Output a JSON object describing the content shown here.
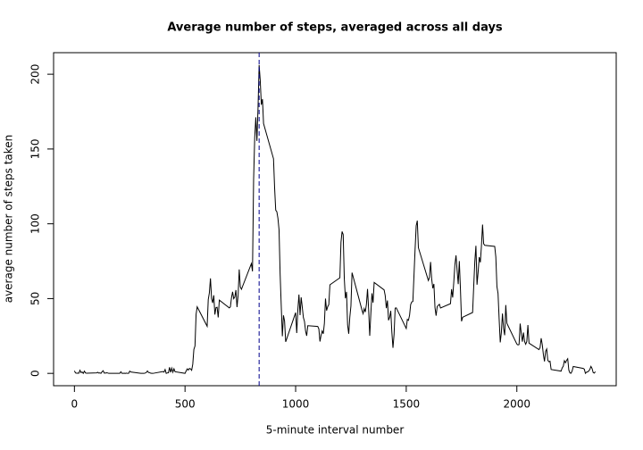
{
  "chart_data": {
    "type": "line",
    "title": "Average number of steps, averaged across all days",
    "x_label": "5-minute interval number",
    "y_label": "average number of steps taken",
    "color": "#000000",
    "vline_x": 835,
    "vline_color": "#00008b",
    "xlim": [
      -94.2,
      2449.2
    ],
    "ylim": [
      -8.25,
      214.4
    ],
    "xticks": [
      0,
      500,
      1000,
      1500,
      2000
    ],
    "yticks": [
      0,
      50,
      100,
      150,
      200
    ],
    "x": [
      0,
      5,
      10,
      15,
      20,
      25,
      30,
      35,
      40,
      45,
      50,
      55,
      100,
      105,
      110,
      115,
      120,
      125,
      130,
      135,
      140,
      145,
      150,
      155,
      200,
      205,
      210,
      215,
      220,
      225,
      230,
      235,
      240,
      245,
      250,
      255,
      300,
      305,
      310,
      315,
      320,
      325,
      330,
      335,
      340,
      345,
      350,
      355,
      400,
      405,
      410,
      415,
      420,
      425,
      430,
      435,
      440,
      445,
      450,
      455,
      500,
      505,
      510,
      515,
      520,
      525,
      530,
      535,
      540,
      545,
      550,
      555,
      600,
      605,
      610,
      615,
      620,
      625,
      630,
      635,
      640,
      645,
      650,
      655,
      700,
      705,
      710,
      715,
      720,
      725,
      730,
      735,
      740,
      745,
      750,
      755,
      800,
      805,
      810,
      815,
      820,
      825,
      830,
      835,
      840,
      845,
      850,
      855,
      900,
      905,
      910,
      915,
      920,
      925,
      930,
      935,
      940,
      945,
      950,
      955,
      1000,
      1005,
      1010,
      1015,
      1020,
      1025,
      1030,
      1035,
      1040,
      1045,
      1050,
      1055,
      1100,
      1105,
      1110,
      1115,
      1120,
      1125,
      1130,
      1135,
      1140,
      1145,
      1150,
      1155,
      1200,
      1205,
      1210,
      1215,
      1220,
      1225,
      1230,
      1235,
      1240,
      1245,
      1250,
      1255,
      1300,
      1305,
      1310,
      1315,
      1320,
      1325,
      1330,
      1335,
      1340,
      1345,
      1350,
      1355,
      1400,
      1405,
      1410,
      1415,
      1420,
      1425,
      1430,
      1435,
      1440,
      1445,
      1450,
      1455,
      1500,
      1505,
      1510,
      1515,
      1520,
      1525,
      1530,
      1535,
      1540,
      1545,
      1550,
      1555,
      1600,
      1605,
      1610,
      1615,
      1620,
      1625,
      1630,
      1635,
      1640,
      1645,
      1650,
      1655,
      1700,
      1705,
      1710,
      1715,
      1720,
      1725,
      1730,
      1735,
      1740,
      1745,
      1750,
      1755,
      1800,
      1805,
      1810,
      1815,
      1820,
      1825,
      1830,
      1835,
      1840,
      1845,
      1850,
      1855,
      1900,
      1905,
      1910,
      1915,
      1920,
      1925,
      1930,
      1935,
      1940,
      1945,
      1950,
      1955,
      2000,
      2005,
      2010,
      2015,
      2020,
      2025,
      2030,
      2035,
      2040,
      2045,
      2050,
      2055,
      2100,
      2105,
      2110,
      2115,
      2120,
      2125,
      2130,
      2135,
      2140,
      2145,
      2150,
      2155,
      2200,
      2205,
      2210,
      2215,
      2220,
      2225,
      2230,
      2235,
      2240,
      2245,
      2250,
      2255,
      2300,
      2305,
      2310,
      2315,
      2320,
      2325,
      2330,
      2335,
      2340,
      2345,
      2350,
      2355
    ],
    "values": [
      1.7,
      0.3,
      0.1,
      0.2,
      0.1,
      2.1,
      0.5,
      0.9,
      0,
      1.5,
      0.3,
      0.1,
      0.3,
      0.7,
      0.2,
      0.3,
      0,
      1.1,
      1.8,
      0.2,
      0.2,
      0.4,
      0.3,
      0,
      0,
      0,
      1.1,
      0,
      0,
      0.1,
      0,
      0.2,
      0,
      0,
      1.5,
      0.9,
      0,
      0,
      0,
      0,
      0.2,
      0.6,
      1.6,
      0.6,
      0.5,
      0.1,
      0,
      0,
      1.2,
      0.9,
      2.6,
      0,
      0.3,
      0.4,
      4.1,
      0.7,
      3.5,
      0.8,
      3.1,
      1.1,
      0,
      1.6,
      3.0,
      2.2,
      3.3,
      3.0,
      2.1,
      6.1,
      16.0,
      18.3,
      39.5,
      44.5,
      31.5,
      49.3,
      53.8,
      63.5,
      50.0,
      47.1,
      52.2,
      39.3,
      44.0,
      44.2,
      37.4,
      49.0,
      43.8,
      44.4,
      50.5,
      54.5,
      49.9,
      51.0,
      55.7,
      44.3,
      52.3,
      69.5,
      57.8,
      56.2,
      73.4,
      68.2,
      129.4,
      157.5,
      171.2,
      155.4,
      177.3,
      206.2,
      195.9,
      179.6,
      183.4,
      167.0,
      143.5,
      124.0,
      109.1,
      108.1,
      103.7,
      96.0,
      66.2,
      45.2,
      24.8,
      38.8,
      35.0,
      21.1,
      40.6,
      27.0,
      42.4,
      52.7,
      38.9,
      50.8,
      44.3,
      37.4,
      34.7,
      28.3,
      25.1,
      31.9,
      31.4,
      29.7,
      21.3,
      25.5,
      28.4,
      26.5,
      33.4,
      50.0,
      42.0,
      44.6,
      46.0,
      59.2,
      63.9,
      87.7,
      94.8,
      92.8,
      63.4,
      50.2,
      54.5,
      32.4,
      26.5,
      37.7,
      45.1,
      67.3,
      42.3,
      39.9,
      43.3,
      41.0,
      46.2,
      56.4,
      42.8,
      25.1,
      40.0,
      53.5,
      47.3,
      60.8,
      55.8,
      52.0,
      43.6,
      48.7,
      35.5,
      37.5,
      41.8,
      27.5,
      17.1,
      26.1,
      43.6,
      43.8,
      30.0,
      36.1,
      35.5,
      38.8,
      46.0,
      47.8,
      48.1,
      65.3,
      82.9,
      98.7,
      102.1,
      84.0,
      62.1,
      64.1,
      74.5,
      63.2,
      56.9,
      59.8,
      43.9,
      38.6,
      44.7,
      45.5,
      46.2,
      43.7,
      46.6,
      56.3,
      50.7,
      61.2,
      72.7,
      78.9,
      68.9,
      59.7,
      75.1,
      56.5,
      34.8,
      37.5,
      40.7,
      58.0,
      74.7,
      85.3,
      59.3,
      67.8,
      77.7,
      74.2,
      85.3,
      99.5,
      86.6,
      85.6,
      84.9,
      77.8,
      58.0,
      53.4,
      36.3,
      20.7,
      27.4,
      40.0,
      30.2,
      25.5,
      45.7,
      33.5,
      19.6,
      19.0,
      19.3,
      33.3,
      26.8,
      21.2,
      27.3,
      21.3,
      19.5,
      21.3,
      32.3,
      20.2,
      15.9,
      17.2,
      23.5,
      19.2,
      12.5,
      8.0,
      14.7,
      16.3,
      8.7,
      7.8,
      8.1,
      2.6,
      1.5,
      3.7,
      4.8,
      8.5,
      7.1,
      8.7,
      9.8,
      2.2,
      0.3,
      0.1,
      1.6,
      4.6,
      3.3,
      2.8,
      0,
      0.8,
      1.0,
      1.6,
      2.6,
      4.7,
      3.3,
      0.6,
      0.2,
      1.1
    ]
  }
}
